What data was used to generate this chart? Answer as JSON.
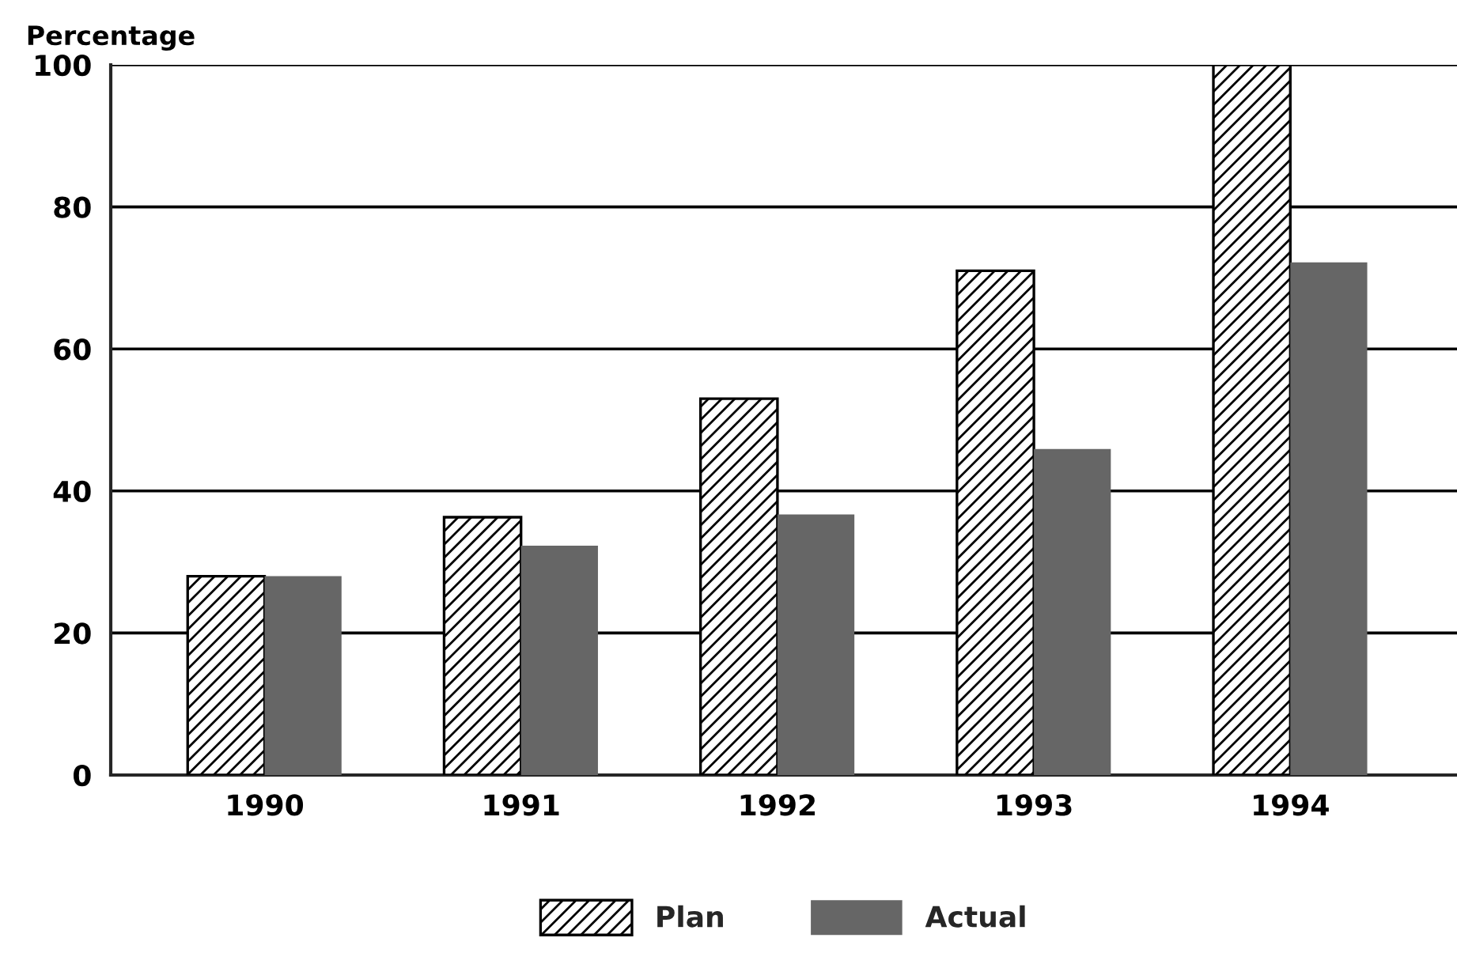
{
  "chart_data": {
    "type": "bar",
    "ylabel": "Percentage",
    "categories": [
      "1990",
      "1991",
      "1992",
      "1993",
      "1994"
    ],
    "series": [
      {
        "name": "Plan",
        "color": "#000000",
        "values": [
          28,
          36.3,
          53,
          71,
          100
        ]
      },
      {
        "name": "Actual",
        "color": "#666666",
        "values": [
          28,
          32.3,
          36.7,
          45.9,
          72.2
        ]
      }
    ],
    "ylim": [
      0,
      100
    ],
    "yticks": [
      0,
      20,
      40,
      60,
      80,
      100
    ],
    "grid": "y",
    "legend": "bottom"
  }
}
